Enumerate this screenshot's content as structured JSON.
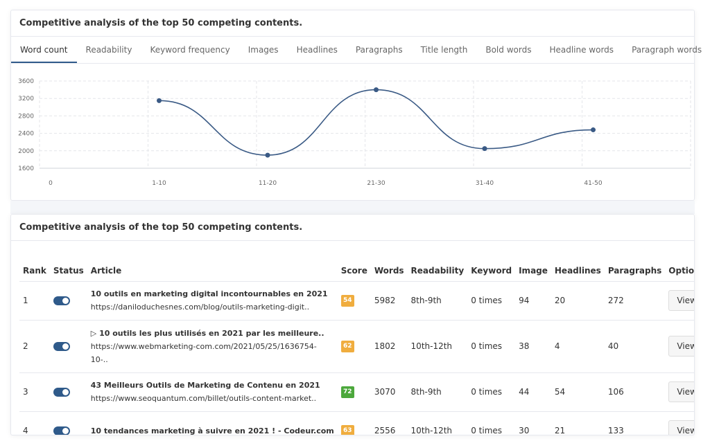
{
  "top_card": {
    "title": "Competitive analysis of the top 50 competing contents.",
    "tabs": [
      "Word count",
      "Readability",
      "Keyword frequency",
      "Images",
      "Headlines",
      "Paragraphs",
      "Title length",
      "Bold words",
      "Headline words",
      "Paragraph words"
    ],
    "active_tab": 0
  },
  "chart_data": {
    "type": "line",
    "categories": [
      "0",
      "1-10",
      "11-20",
      "21-30",
      "31-40",
      "41-50"
    ],
    "x_end_label": ".",
    "values": [
      null,
      3150,
      1900,
      3400,
      2050,
      2480
    ],
    "yticks": [
      1600,
      2000,
      2400,
      2800,
      3200,
      3600
    ],
    "ylim": [
      1600,
      3600
    ],
    "grid": true,
    "smooth": true,
    "line_color": "#3a5a85"
  },
  "bottom_card": {
    "title": "Competitive analysis of the top 50 competing contents.",
    "headers": [
      "Rank",
      "Status",
      "Article",
      "Score",
      "Words",
      "Readability",
      "Keyword",
      "Image",
      "Headlines",
      "Paragraphs",
      "Options"
    ],
    "rows": [
      {
        "rank": "1",
        "title": "10 outils en marketing digital incontournables en 2021",
        "url": "https://daniloduchesnes.com/blog/outils-marketing-digit..",
        "url2": "",
        "score": "54",
        "score_color": "#f0ad3e",
        "words": "5982",
        "readability": "8th-9th",
        "keyword": "0 times",
        "image": "94",
        "headlines": "20",
        "paragraphs": "272",
        "option": "View article"
      },
      {
        "rank": "2",
        "title": "▷ 10 outils les plus utilisés en 2021 par les meilleure..",
        "url": "https://www.webmarketing-com.com/2021/05/25/1636754-",
        "url2": "10-..",
        "score": "62",
        "score_color": "#f0ad3e",
        "words": "1802",
        "readability": "10th-12th",
        "keyword": "0 times",
        "image": "38",
        "headlines": "4",
        "paragraphs": "40",
        "option": "View article"
      },
      {
        "rank": "3",
        "title": "43 Meilleurs Outils de Marketing de Contenu en 2021",
        "url": "https://www.seoquantum.com/billet/outils-content-market..",
        "url2": "",
        "score": "72",
        "score_color": "#4ca83c",
        "words": "3070",
        "readability": "8th-9th",
        "keyword": "0 times",
        "image": "44",
        "headlines": "54",
        "paragraphs": "106",
        "option": "View article"
      },
      {
        "rank": "4",
        "title": "10 tendances marketing à suivre en 2021 ! - Codeur.com",
        "url": "",
        "url2": "",
        "score": "63",
        "score_color": "#f0ad3e",
        "words": "2556",
        "readability": "10th-12th",
        "keyword": "0 times",
        "image": "30",
        "headlines": "21",
        "paragraphs": "133",
        "option": "View article"
      }
    ]
  }
}
